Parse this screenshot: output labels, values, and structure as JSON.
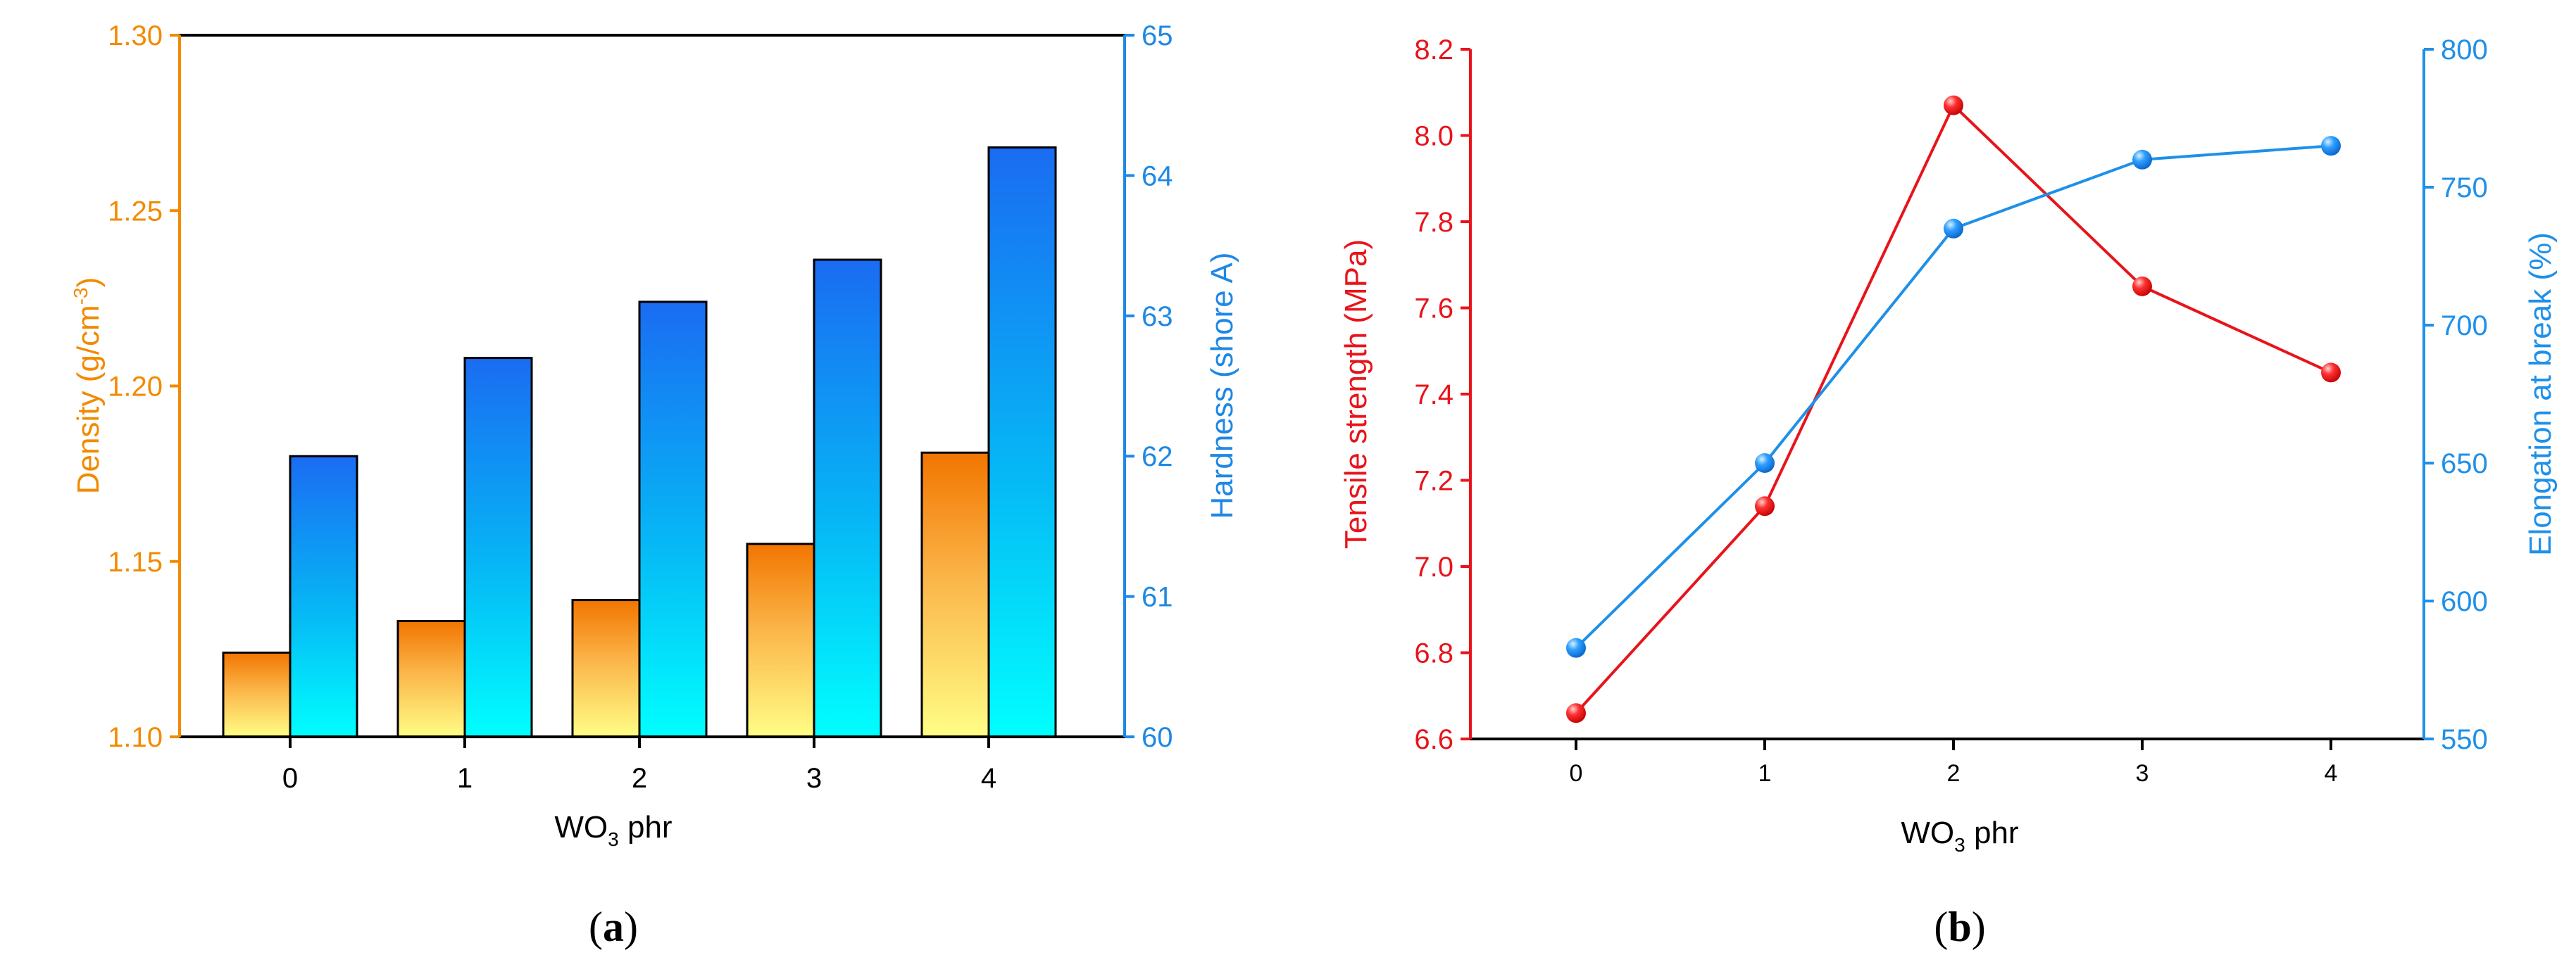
{
  "chart_data": [
    {
      "type": "bar",
      "panel_label": "a",
      "xlabel": "WO",
      "xlabel_sub": "3",
      "xlabel_suffix": " phr",
      "categories": [
        "0",
        "1",
        "2",
        "3",
        "4"
      ],
      "ylabel_left": "Density (g/cm",
      "ylabel_left_sup": "-3",
      "ylabel_left_suffix": ")",
      "ylabel_right": "Hardness (shore A)",
      "ylim_left": [
        1.1,
        1.3
      ],
      "ylim_right": [
        60,
        65
      ],
      "yticks_left": [
        "1.10",
        "1.15",
        "1.20",
        "1.25",
        "1.30"
      ],
      "yticks_right": [
        "60",
        "61",
        "62",
        "63",
        "64",
        "65"
      ],
      "series": [
        {
          "name": "Density",
          "axis": "left",
          "values": [
            1.124,
            1.133,
            1.139,
            1.155,
            1.181
          ]
        },
        {
          "name": "Hardness",
          "axis": "right",
          "values": [
            62.0,
            62.7,
            63.1,
            63.4,
            64.2
          ]
        }
      ]
    },
    {
      "type": "line",
      "panel_label": "b",
      "xlabel": "WO",
      "xlabel_sub": "3",
      "xlabel_suffix": " phr",
      "categories": [
        "0",
        "1",
        "2",
        "3",
        "4"
      ],
      "ylabel_left": "Tensile strength (MPa)",
      "ylabel_right": "Elongation at break (%)",
      "ylim_left": [
        6.6,
        8.2
      ],
      "ylim_right": [
        550,
        800
      ],
      "yticks_left": [
        "6.6",
        "6.8",
        "7.0",
        "7.2",
        "7.4",
        "7.6",
        "7.8",
        "8.0",
        "8.2"
      ],
      "yticks_right": [
        "550",
        "600",
        "650",
        "700",
        "750",
        "800"
      ],
      "series": [
        {
          "name": "Tensile strength",
          "axis": "left",
          "values": [
            6.66,
            7.14,
            8.07,
            7.65,
            7.45
          ]
        },
        {
          "name": "Elongation at break",
          "axis": "right",
          "values": [
            583,
            650,
            735,
            760,
            765
          ]
        }
      ]
    }
  ],
  "colors": {
    "density_axis": "#f28a00",
    "hardness_axis": "#1e88e5",
    "tensile": "#e8141b",
    "elongation": "#1e90e8"
  }
}
